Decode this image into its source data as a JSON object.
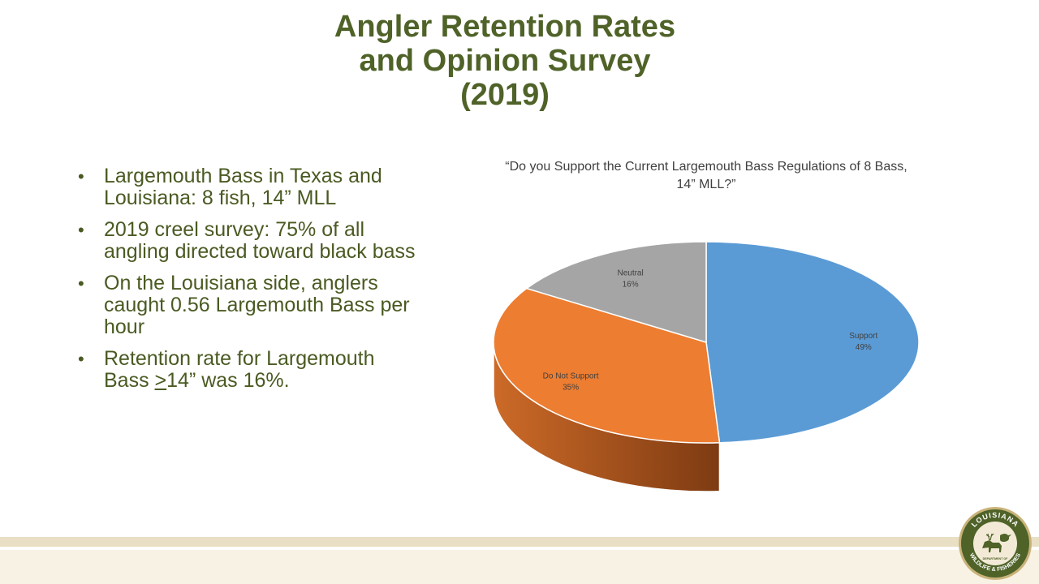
{
  "slide": {
    "title_lines": [
      "Angler Retention Rates",
      "and Opinion Survey",
      "(2019)"
    ],
    "bullets": [
      {
        "text": "Largemouth Bass in Texas and Louisiana: 8 fish, 14” MLL"
      },
      {
        "text": "2019 creel survey: 75% of all angling directed toward black bass"
      },
      {
        "text": "On the Louisiana side, anglers caught 0.56 Largemouth Bass per hour"
      },
      {
        "pre": "Retention rate for Largemouth Bass ",
        "underlined": ">",
        "post": "14” was 16%."
      }
    ]
  },
  "chart_data": {
    "type": "pie",
    "title": "“Do you Support the Current Largemouth Bass Regulations of 8 Bass, 14” MLL?”",
    "slices": [
      {
        "label": "Support",
        "value": 49,
        "value_label": "49%",
        "color": "#5b9bd5",
        "side_color": "#2a4560"
      },
      {
        "label": "Do Not Support",
        "value": 35,
        "value_label": "35%",
        "color": "#ed7d31",
        "side_color": "#b85a1c"
      },
      {
        "label": "Neutral",
        "value": 16,
        "value_label": "16%",
        "color": "#a5a5a5",
        "side_color": "#6e6e6e"
      }
    ]
  },
  "logo": {
    "top_text": "LOUISIANA",
    "bottom_text": "WILDLIFE & FISHERIES",
    "center_text": "DEPARTMENT OF",
    "colors": {
      "ring": "#4f6228",
      "inner": "#f2ead6",
      "border": "#c9b37a"
    }
  }
}
